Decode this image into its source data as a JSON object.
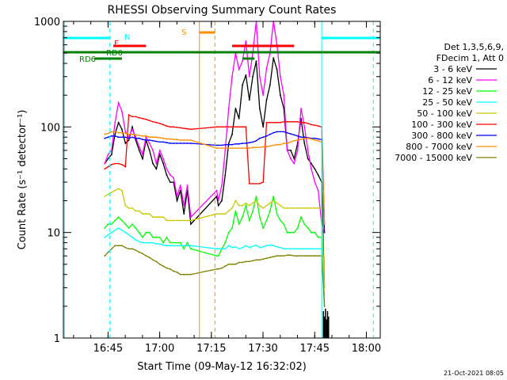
{
  "chart_data": {
    "type": "line",
    "title": "RHESSI Observing Summary Count Rates",
    "xlabel": "Start Time (09-May-12 16:32:02)",
    "ylabel": "Count Rate (s⁻¹ detector⁻¹)",
    "x_unit": "minutes after 16:32:02",
    "xlim": [
      0,
      92
    ],
    "ylim": [
      1,
      1000
    ],
    "yscale": "log",
    "x_ticks": [
      {
        "x": 12.97,
        "label": "16:45"
      },
      {
        "x": 27.97,
        "label": "17:00"
      },
      {
        "x": 42.97,
        "label": "17:15"
      },
      {
        "x": 57.97,
        "label": "17:30"
      },
      {
        "x": 72.97,
        "label": "17:45"
      },
      {
        "x": 87.97,
        "label": "18:00"
      }
    ],
    "y_ticks": [
      {
        "y": 1,
        "label": "1"
      },
      {
        "y": 10,
        "label": "10"
      },
      {
        "y": 100,
        "label": "100"
      },
      {
        "y": 1000,
        "label": "1000"
      }
    ],
    "legend_position": "right",
    "legend_header": [
      "Det 1,3,5,6,9,",
      "FDecim 1, Att 0"
    ],
    "footer_date": "21-Oct-2021 08:05",
    "series": [
      {
        "name": "3 - 6 keV",
        "color": "#000000",
        "x": [
          12,
          13,
          14,
          15,
          16,
          17,
          18,
          19,
          20,
          21,
          22,
          23,
          24,
          25,
          26,
          27,
          28,
          29,
          30,
          31,
          32,
          33,
          34,
          35,
          36,
          37,
          44.5,
          45,
          46,
          47,
          48,
          49,
          50,
          51,
          52,
          53,
          54,
          55,
          56,
          57,
          58,
          59,
          60,
          61,
          62,
          63,
          64,
          65,
          66,
          67,
          68,
          69,
          70,
          71,
          72,
          73,
          74,
          75,
          75.8
        ],
        "y": [
          45,
          50,
          55,
          85,
          110,
          95,
          70,
          75,
          100,
          75,
          60,
          50,
          75,
          60,
          45,
          40,
          55,
          45,
          35,
          30,
          30,
          20,
          25,
          15,
          25,
          12,
          22,
          18,
          20,
          35,
          70,
          85,
          150,
          120,
          250,
          310,
          180,
          300,
          420,
          150,
          100,
          180,
          250,
          450,
          350,
          200,
          150,
          60,
          60,
          50,
          70,
          120,
          70,
          50,
          45,
          40,
          35,
          30,
          3
        ]
      },
      {
        "name": "6 - 12 keV",
        "color": "#ff00ff",
        "x": [
          12,
          13,
          14,
          15,
          16,
          17,
          18,
          19,
          20,
          21,
          22,
          23,
          24,
          25,
          26,
          27,
          28,
          29,
          30,
          31,
          32,
          33,
          34,
          35,
          36,
          37,
          44.5,
          45,
          46,
          47,
          48,
          49,
          50,
          51,
          52,
          53,
          54,
          55,
          56,
          57,
          58,
          59,
          60,
          61,
          62,
          63,
          64,
          65,
          66,
          67,
          68,
          69,
          70,
          71,
          72,
          73,
          74,
          75,
          75.8
        ],
        "y": [
          45,
          55,
          60,
          110,
          170,
          140,
          90,
          80,
          95,
          80,
          65,
          55,
          80,
          70,
          60,
          45,
          60,
          50,
          40,
          35,
          33,
          22,
          28,
          18,
          28,
          14,
          25,
          20,
          28,
          60,
          150,
          300,
          500,
          350,
          420,
          650,
          300,
          500,
          1000,
          300,
          200,
          360,
          500,
          1000,
          600,
          300,
          200,
          60,
          50,
          45,
          60,
          150,
          100,
          60,
          40,
          30,
          25,
          12,
          10
        ]
      },
      {
        "name": "12 - 25 keV",
        "color": "#00ff00",
        "x": [
          12,
          13,
          14,
          15,
          16,
          17,
          18,
          19,
          20,
          21,
          22,
          23,
          24,
          25,
          26,
          27,
          28,
          29,
          30,
          31,
          32,
          33,
          34,
          35,
          36,
          37,
          44.5,
          45,
          46,
          47,
          48,
          49,
          50,
          51,
          52,
          53,
          54,
          55,
          56,
          57,
          58,
          59,
          60,
          61,
          62,
          63,
          64,
          65,
          66,
          67,
          68,
          69,
          70,
          71,
          72,
          73,
          74,
          75,
          75.8
        ],
        "y": [
          11,
          12,
          12,
          13,
          14,
          13,
          12,
          11,
          12,
          11,
          10,
          9,
          10,
          10,
          9,
          9,
          9,
          8,
          9,
          8,
          8,
          8,
          8,
          7,
          8,
          7,
          6,
          6,
          7,
          8,
          10,
          11,
          16,
          12,
          14,
          18,
          13,
          16,
          22,
          14,
          11,
          13,
          16,
          22,
          15,
          13,
          12,
          10,
          10,
          10,
          11,
          14,
          12,
          11,
          10,
          10,
          9,
          9,
          2
        ]
      },
      {
        "name": "25 - 50 keV",
        "color": "#00ffff",
        "x": [
          12,
          13,
          14,
          15,
          16,
          17,
          18,
          19,
          20,
          21,
          22,
          23,
          24,
          25,
          26,
          27,
          28,
          29,
          30,
          31,
          32,
          33,
          34,
          35,
          36,
          37,
          44.5,
          45,
          46,
          47,
          48,
          49,
          50,
          51,
          52,
          53,
          54,
          55,
          56,
          57,
          58,
          59,
          60,
          61,
          62,
          63,
          64,
          65,
          66,
          67,
          68,
          69,
          70,
          71,
          72,
          73,
          74,
          75,
          75.8
        ],
        "y": [
          9,
          9.5,
          10,
          10.5,
          11,
          10.5,
          10,
          9.5,
          9,
          8.5,
          8.2,
          8,
          8,
          8,
          8,
          7.8,
          7.8,
          7.6,
          7.5,
          7.5,
          7.5,
          7.5,
          7.5,
          7.5,
          7.5,
          7.5,
          7,
          7,
          7,
          7,
          7.5,
          7.2,
          7.3,
          7,
          7.2,
          7.5,
          7.2,
          7.4,
          7.6,
          7.2,
          7.3,
          7.5,
          7.6,
          7.5,
          7.3,
          7.2,
          7,
          7,
          7,
          7,
          7,
          7,
          7,
          7,
          7,
          7,
          7,
          7,
          2.5
        ]
      },
      {
        "name": "50 - 100 keV",
        "color": "#c8c800",
        "x": [
          12,
          13,
          14,
          15,
          16,
          17,
          18,
          19,
          20,
          21,
          22,
          23,
          24,
          25,
          26,
          27,
          28,
          29,
          30,
          31,
          32,
          33,
          34,
          35,
          36,
          37,
          44.5,
          45,
          46,
          47,
          48,
          49,
          50,
          51,
          52,
          53,
          54,
          55,
          56,
          57,
          58,
          59,
          60,
          61,
          62,
          63,
          64,
          65,
          66,
          67,
          68,
          69,
          70,
          71,
          72,
          73,
          74,
          75,
          75.8
        ],
        "y": [
          22,
          23,
          24,
          25,
          26,
          25,
          18,
          17,
          17,
          16,
          16,
          15,
          15,
          15,
          14,
          14,
          14,
          14,
          13,
          13,
          13,
          13,
          13,
          13,
          13,
          13,
          15,
          15,
          15,
          15,
          16,
          17,
          20,
          18,
          18,
          19,
          18,
          19,
          20,
          18,
          17,
          18,
          19,
          20,
          19,
          18,
          17,
          17,
          17,
          17,
          17,
          17,
          17,
          17,
          17,
          17,
          17,
          17,
          3
        ]
      },
      {
        "name": "100 - 300 keV",
        "color": "#ff0000",
        "x": [
          12,
          13,
          14,
          15,
          16,
          17,
          18,
          19,
          20,
          21,
          22,
          23,
          24,
          25,
          26,
          27,
          28,
          29,
          30,
          31,
          32,
          33,
          34,
          35,
          36,
          37,
          44.5,
          45,
          46,
          47,
          48,
          49,
          50,
          51,
          52,
          53,
          54,
          55,
          56,
          57,
          58,
          59,
          60,
          61,
          62,
          63,
          64,
          65,
          66,
          67,
          68,
          69,
          70,
          71,
          72,
          73,
          74,
          75,
          75.8
        ],
        "y": [
          40,
          42,
          44,
          45,
          45,
          44,
          42,
          130,
          125,
          125,
          122,
          120,
          118,
          115,
          112,
          110,
          108,
          105,
          102,
          100,
          100,
          99,
          98,
          97,
          96,
          95,
          100,
          100,
          100,
          100,
          100,
          100,
          100,
          100,
          100,
          100,
          29,
          29,
          29,
          29,
          30,
          110,
          110,
          110,
          110,
          110,
          112,
          112,
          112,
          112,
          112,
          110,
          110,
          108,
          105,
          104,
          102,
          100,
          12
        ]
      },
      {
        "name": "300 - 800 keV",
        "color": "#0000ff",
        "x": [
          12,
          13,
          14,
          15,
          16,
          17,
          18,
          19,
          20,
          21,
          22,
          23,
          24,
          25,
          26,
          27,
          28,
          29,
          30,
          31,
          32,
          33,
          34,
          35,
          36,
          37,
          44.5,
          45,
          46,
          47,
          48,
          49,
          50,
          51,
          52,
          53,
          54,
          55,
          56,
          57,
          58,
          59,
          60,
          61,
          62,
          63,
          64,
          65,
          66,
          67,
          68,
          69,
          70,
          71,
          72,
          73,
          74,
          75,
          75.8
        ],
        "y": [
          78,
          80,
          82,
          82,
          80,
          80,
          80,
          78,
          80,
          78,
          78,
          76,
          75,
          75,
          74,
          73,
          72,
          72,
          71,
          70,
          70,
          70,
          70,
          70,
          70,
          70,
          67,
          67,
          67,
          68,
          68,
          68,
          69,
          69,
          70,
          70,
          71,
          72,
          74,
          78,
          80,
          82,
          85,
          88,
          90,
          90,
          90,
          88,
          86,
          84,
          82,
          80,
          80,
          79,
          78,
          78,
          77,
          76,
          10
        ]
      },
      {
        "name": "800 - 7000 keV",
        "color": "#ff8c00",
        "x": [
          12,
          13,
          14,
          15,
          16,
          17,
          18,
          19,
          20,
          21,
          22,
          23,
          24,
          25,
          26,
          27,
          28,
          29,
          30,
          31,
          32,
          33,
          34,
          35,
          36,
          37,
          44.5,
          45,
          46,
          47,
          48,
          49,
          50,
          51,
          52,
          53,
          54,
          55,
          56,
          57,
          58,
          59,
          60,
          61,
          62,
          63,
          64,
          65,
          66,
          67,
          68,
          69,
          70,
          71,
          72,
          73,
          74,
          75,
          75.8
        ],
        "y": [
          85,
          87,
          90,
          90,
          88,
          88,
          87,
          85,
          85,
          84,
          83,
          82,
          82,
          80,
          80,
          80,
          79,
          78,
          77,
          77,
          76,
          76,
          75,
          75,
          75,
          75,
          63,
          63,
          63,
          63,
          63,
          63,
          63,
          63,
          63,
          63,
          63,
          64,
          64,
          64,
          65,
          65,
          66,
          67,
          68,
          68,
          70,
          70,
          72,
          74,
          75,
          76,
          78,
          78,
          77,
          75,
          74,
          72,
          12
        ]
      },
      {
        "name": "7000 - 15000 keV",
        "color": "#808000",
        "x": [
          12,
          13,
          14,
          15,
          16,
          17,
          18,
          19,
          20,
          21,
          22,
          23,
          24,
          25,
          26,
          27,
          28,
          29,
          30,
          31,
          32,
          33,
          34,
          35,
          36,
          37,
          44.5,
          45,
          46,
          47,
          48,
          49,
          50,
          51,
          52,
          53,
          54,
          55,
          56,
          57,
          58,
          59,
          60,
          61,
          62,
          63,
          64,
          65,
          66,
          67,
          68,
          69,
          70,
          71,
          72,
          73,
          74,
          75,
          75.8
        ],
        "y": [
          6,
          6.5,
          7,
          7.5,
          7.5,
          7.5,
          7.2,
          7,
          7,
          6.8,
          6.5,
          6.3,
          6,
          5.8,
          5.5,
          5.3,
          5,
          4.8,
          4.6,
          4.5,
          4.3,
          4.2,
          4,
          4,
          4,
          4,
          4.5,
          4.5,
          4.6,
          4.8,
          5,
          5,
          5,
          5.2,
          5.2,
          5.3,
          5.3,
          5.4,
          5.5,
          5.5,
          5.6,
          5.7,
          5.8,
          5.9,
          6,
          6,
          6,
          6.1,
          6.1,
          6,
          6,
          6,
          6,
          6,
          6,
          6,
          6,
          6,
          2
        ]
      }
    ],
    "spikes": [
      {
        "x": 75.5,
        "y_min": 1,
        "y_max": 1.8
      },
      {
        "x": 75.8,
        "y_min": 1,
        "y_max": 1.6
      },
      {
        "x": 76.1,
        "y_min": 1,
        "y_max": 1.9
      },
      {
        "x": 76.4,
        "y_min": 1,
        "y_max": 1.5
      },
      {
        "x": 76.7,
        "y_min": 1,
        "y_max": 1.8
      },
      {
        "x": 77.0,
        "y_min": 1,
        "y_max": 1.6
      }
    ],
    "vertical_lines": [
      {
        "x": 0.3,
        "color": "#00ffff",
        "style": "solid"
      },
      {
        "x": 13.5,
        "color": "#00ffff",
        "style": "dashed"
      },
      {
        "x": 39.5,
        "color": "#ff8c00",
        "style": "solid"
      },
      {
        "x": 44.0,
        "color": "#ff8c00",
        "style": "dashed"
      },
      {
        "x": 75.0,
        "color": "#00ffff",
        "style": "solid"
      },
      {
        "x": 90.0,
        "color": "#00ffff",
        "style": "dashed"
      }
    ],
    "flag_bars": [
      {
        "label": "",
        "color": "#00ffff",
        "x0": 0,
        "x1": 13.5,
        "level": 48
      },
      {
        "label": "N",
        "color": "#00ffff",
        "x0": 75.0,
        "x1": 92,
        "level": 48
      },
      {
        "label": "S",
        "color": "#ff8c00",
        "x0": 39.5,
        "x1": 44.0,
        "level": 41
      },
      {
        "label": "F",
        "color": "#ff0000",
        "x0": 14.5,
        "x1": 24.0,
        "level": 58
      },
      {
        "label": "",
        "color": "#ff0000",
        "x0": 49.0,
        "x1": 67.0,
        "level": 58
      },
      {
        "label": "RD0",
        "color": "#008000",
        "x0": 0,
        "x1": 92,
        "level": 66
      },
      {
        "label": "RD6",
        "color": "#008000",
        "x0": 9.0,
        "x1": 17.0,
        "level": 74
      },
      {
        "label": "",
        "color": "#008000",
        "x0": 52.0,
        "x1": 55.5,
        "level": 74
      }
    ]
  }
}
